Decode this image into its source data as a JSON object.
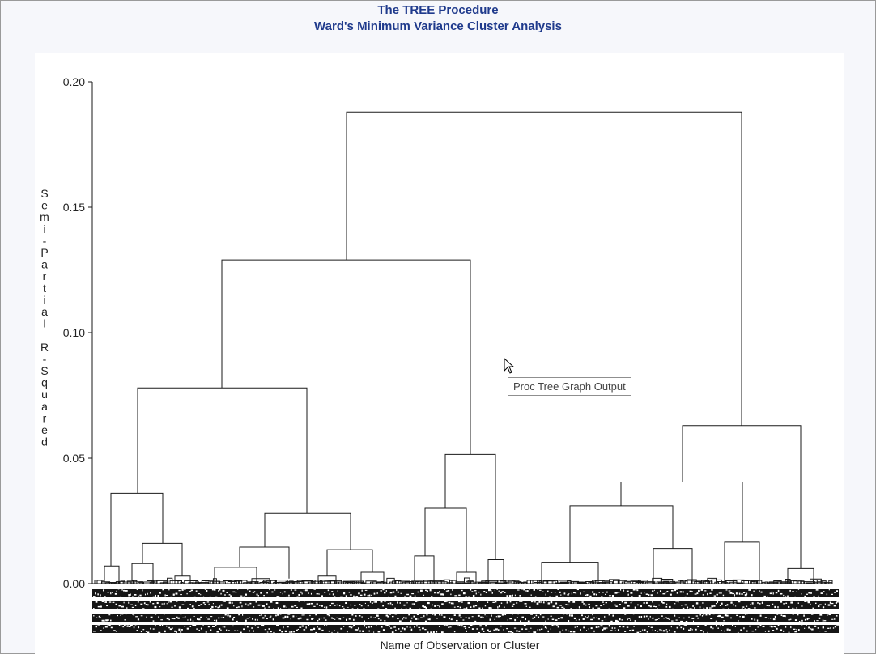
{
  "window": {
    "title": "The TREE Procedure",
    "subtitle": "Ward's Minimum Variance Cluster Analysis",
    "tooltip": "Proc Tree Graph Output",
    "background_color": "#f6f7fb",
    "title_color": "#1f3a8c"
  },
  "chart_data": {
    "type": "dendrogram",
    "title": "The TREE Procedure",
    "subtitle": "Ward's Minimum Variance Cluster Analysis",
    "xlabel": "Name of Observation or Cluster",
    "ylabel": "Semi-Partial R-Squared",
    "ylim": [
      0,
      0.2
    ],
    "yticks": [
      0.0,
      0.05,
      0.1,
      0.15,
      0.2
    ],
    "ytick_labels": [
      "0.00",
      "0.05",
      "0.10",
      "0.15",
      "0.20"
    ],
    "grid": false,
    "leaf_labels_legible": false,
    "merges": [
      {
        "name": "root",
        "height": 0.188,
        "children": [
          "left-main",
          "right-main"
        ]
      },
      {
        "name": "left-main",
        "height": 0.129,
        "children": [
          "left-a",
          "left-b"
        ]
      },
      {
        "name": "left-a",
        "height": 0.078,
        "children": [
          "a1",
          "a2"
        ]
      },
      {
        "name": "a1",
        "height": 0.036,
        "children": [
          "a1-1",
          "a1-2"
        ]
      },
      {
        "name": "a1-1",
        "height": 0.007,
        "children": []
      },
      {
        "name": "a1-2",
        "height": 0.016,
        "children": [
          "a1-2a",
          "a1-2b"
        ]
      },
      {
        "name": "a1-2a",
        "height": 0.008,
        "children": []
      },
      {
        "name": "a1-2b",
        "height": 0.003,
        "children": []
      },
      {
        "name": "a2",
        "height": 0.028,
        "children": [
          "a2-1",
          "a2-2"
        ]
      },
      {
        "name": "a2-1",
        "height": 0.0145,
        "children": [
          "a2-1a",
          "a2-1b"
        ]
      },
      {
        "name": "a2-1a",
        "height": 0.0065,
        "children": []
      },
      {
        "name": "a2-1b",
        "height": 0.002,
        "children": []
      },
      {
        "name": "a2-2",
        "height": 0.0135,
        "children": [
          "a2-2a",
          "a2-2b"
        ]
      },
      {
        "name": "a2-2a",
        "height": 0.003,
        "children": []
      },
      {
        "name": "a2-2b",
        "height": 0.0045,
        "children": []
      },
      {
        "name": "left-b",
        "height": 0.0515,
        "children": [
          "b1",
          "b2"
        ]
      },
      {
        "name": "b1",
        "height": 0.03,
        "children": [
          "b1-1",
          "b1-2"
        ]
      },
      {
        "name": "b1-1",
        "height": 0.011,
        "children": []
      },
      {
        "name": "b1-2",
        "height": 0.0045,
        "children": []
      },
      {
        "name": "b2",
        "height": 0.0095,
        "children": []
      },
      {
        "name": "right-main",
        "height": 0.063,
        "children": [
          "c1",
          "c2"
        ]
      },
      {
        "name": "c1",
        "height": 0.0405,
        "children": [
          "c1-1",
          "c1-2"
        ]
      },
      {
        "name": "c1-1",
        "height": 0.031,
        "children": [
          "c1-1a",
          "c1-1b"
        ]
      },
      {
        "name": "c1-1a",
        "height": 0.0085,
        "children": []
      },
      {
        "name": "c1-1b",
        "height": 0.014,
        "children": []
      },
      {
        "name": "c1-2",
        "height": 0.0165,
        "children": []
      },
      {
        "name": "c2",
        "height": 0.006,
        "children": []
      }
    ]
  }
}
